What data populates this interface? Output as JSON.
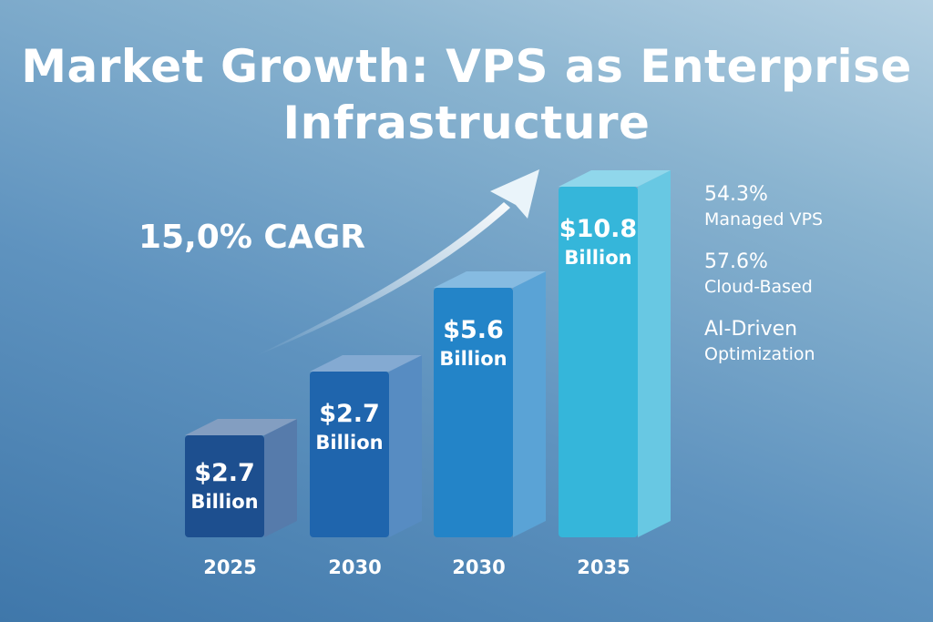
{
  "chart_data": {
    "type": "bar",
    "title": "Market Growth: VPS as Enterprise Infrastructure",
    "categories": [
      "2025",
      "2030",
      "2030",
      "2035"
    ],
    "values": [
      2.7,
      2.7,
      5.6,
      10.8
    ],
    "value_labels": [
      {
        "amount": "$2.7",
        "unit": "Billion"
      },
      {
        "amount": "$2.7",
        "unit": "Billion"
      },
      {
        "amount": "$5.6",
        "unit": "Billion"
      },
      {
        "amount": "$10.8",
        "unit": "Billion"
      }
    ],
    "bar_colors": [
      "#1d4f8f",
      "#1f65ad",
      "#2384c8",
      "#35b6da"
    ],
    "annotation": "15,0% CAGR",
    "grid": false
  },
  "stats": [
    {
      "value": "54.3%",
      "label": "Managed VPS"
    },
    {
      "value": "57.6%",
      "label": "Cloud-Based"
    },
    {
      "value": "AI-Driven",
      "label": "Optimization"
    }
  ]
}
